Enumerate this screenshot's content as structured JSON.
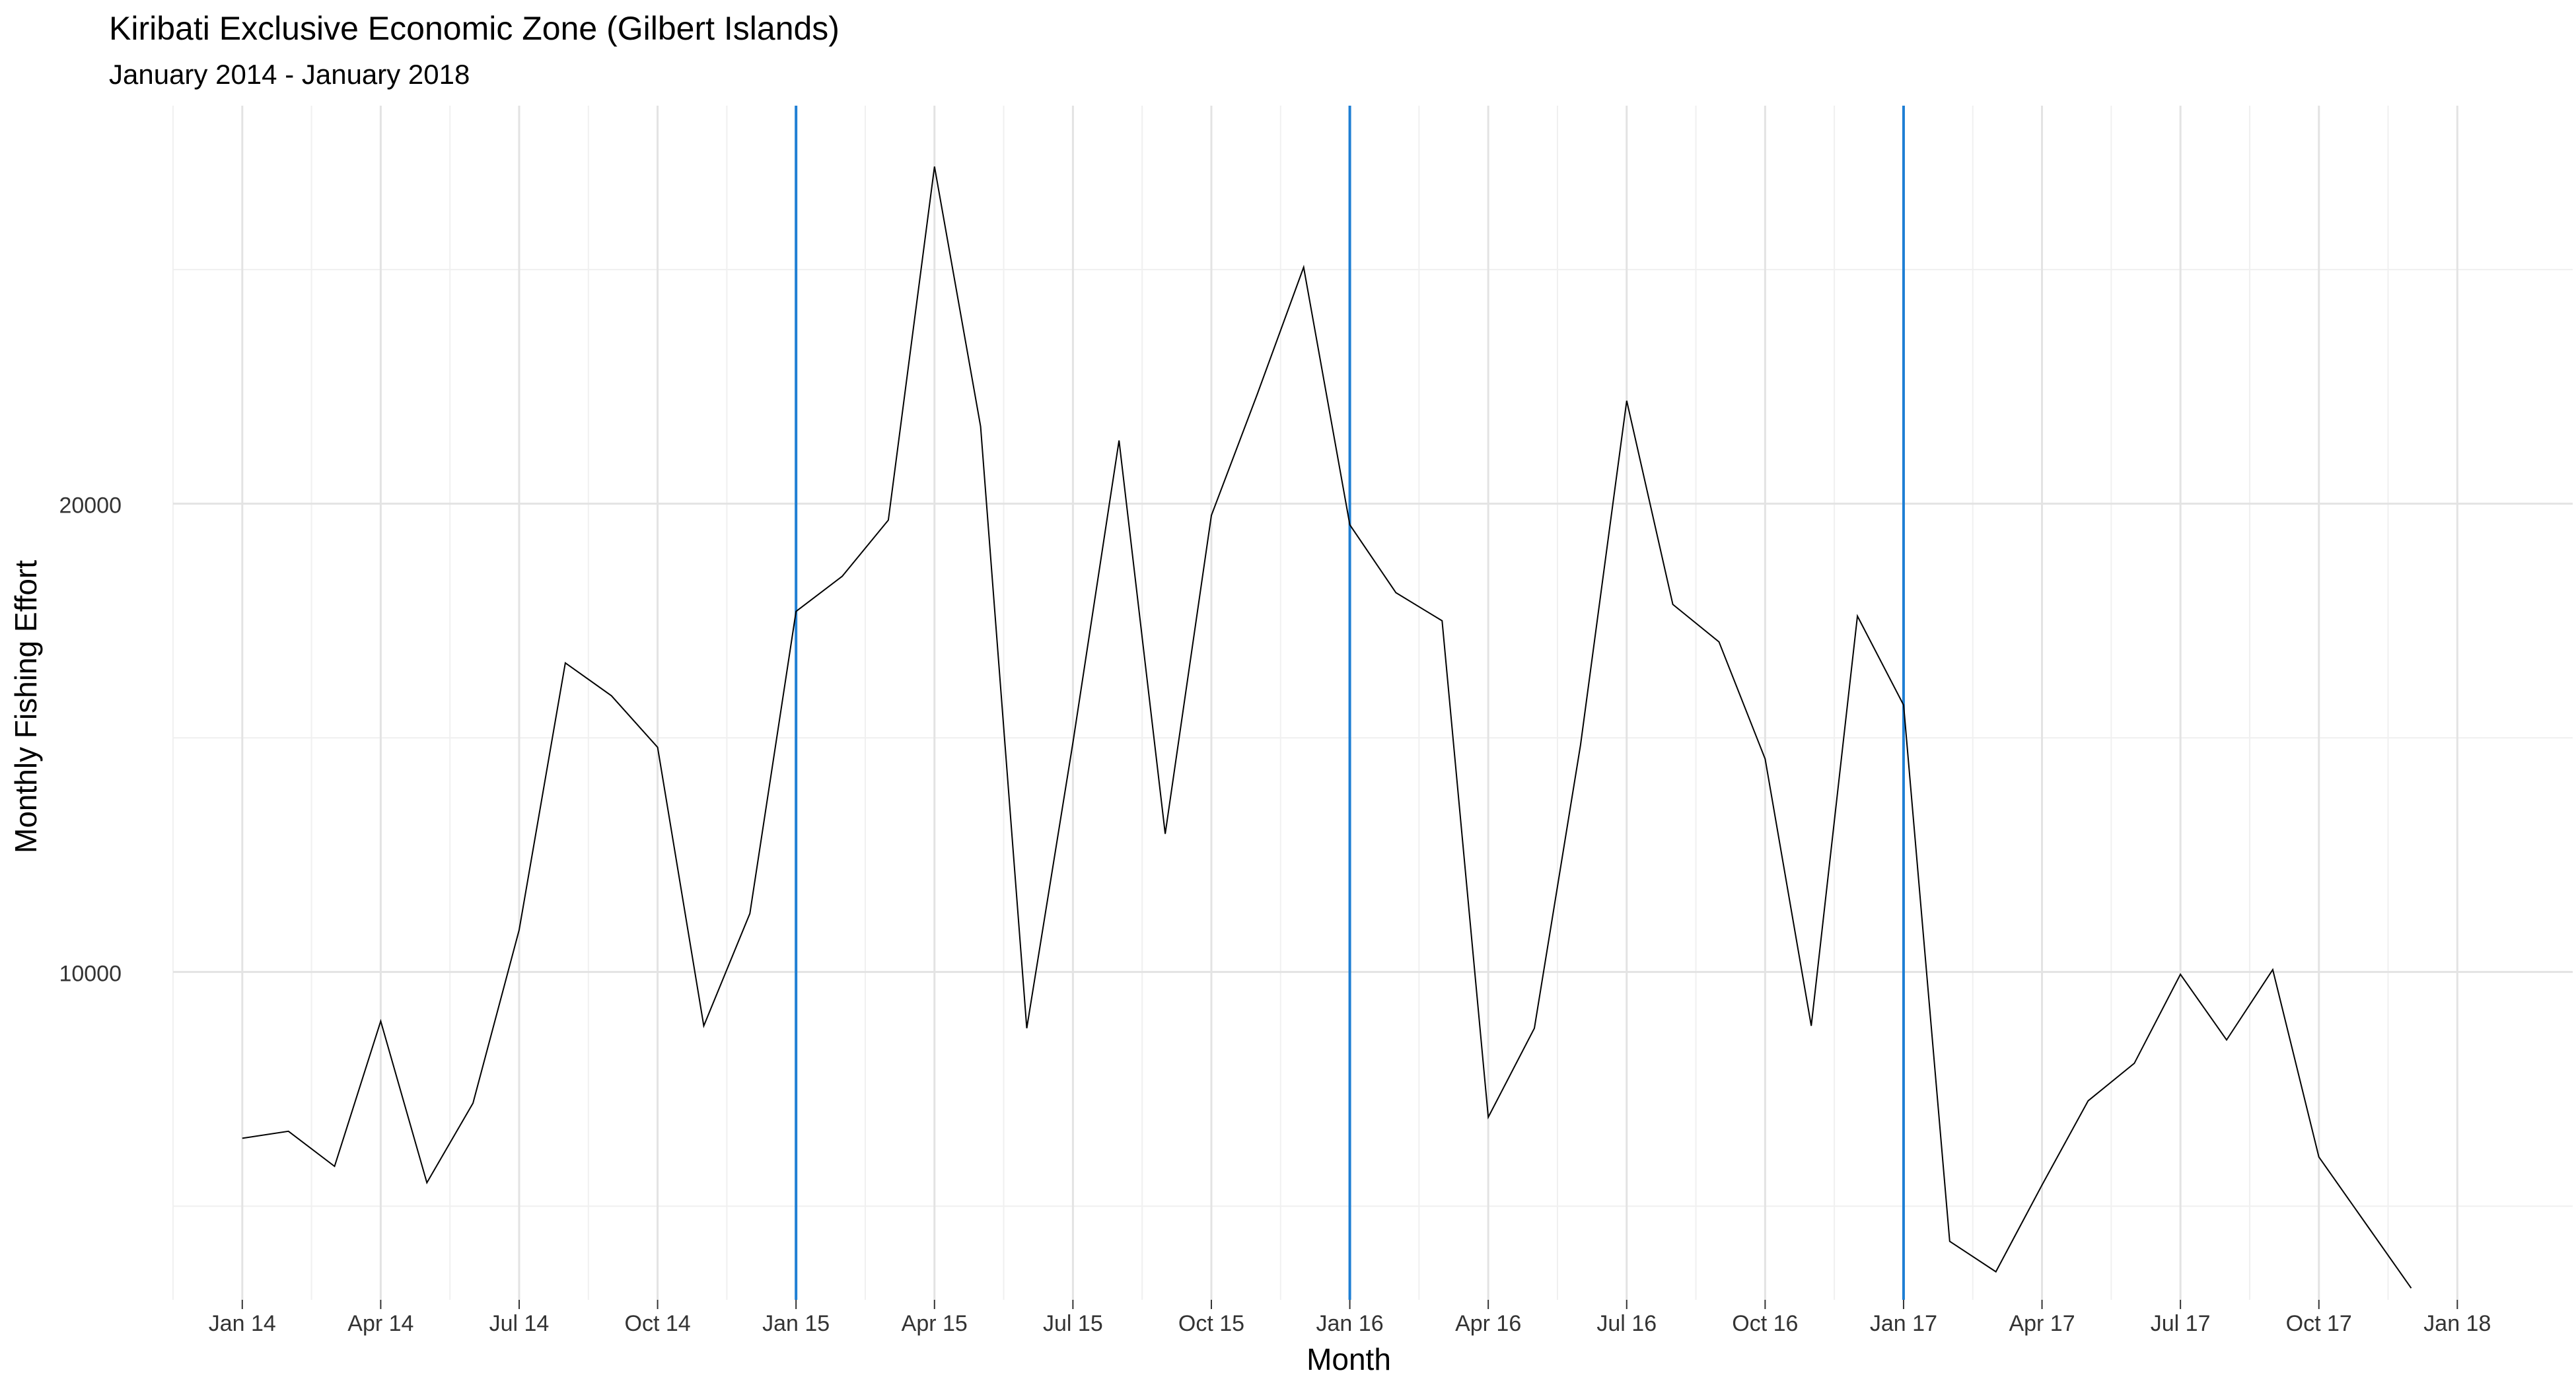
{
  "chart_data": {
    "type": "line",
    "title": "Kiribati Exclusive Economic Zone (Gilbert Islands)",
    "subtitle": "January 2014 - January 2018",
    "xlabel": "Month",
    "ylabel": "Monthly Fishing Effort",
    "ylim": [
      3000,
      28500
    ],
    "y_ticks": [
      10000,
      20000
    ],
    "y_tick_labels": [
      "10000",
      "20000"
    ],
    "x_ticks": [
      "Jan 14",
      "Apr 14",
      "Jul 14",
      "Oct 14",
      "Jan 15",
      "Apr 15",
      "Jul 15",
      "Oct 15",
      "Jan 16",
      "Apr 16",
      "Jul 16",
      "Oct 16",
      "Jan 17",
      "Apr 17",
      "Jul 17",
      "Oct 17",
      "Jan 18"
    ],
    "x_start_month_index": 0,
    "x_range_months": [
      -1.5,
      50.5
    ],
    "grid": true,
    "reference_lines": [
      "Jan 15",
      "Jan 16",
      "Jan 17"
    ],
    "reference_line_month_indices": [
      12,
      24,
      36
    ],
    "series": [
      {
        "name": "Monthly Fishing Effort",
        "color": "#000000",
        "values": [
          6450,
          6600,
          5850,
          8950,
          5500,
          7200,
          10900,
          16600,
          15900,
          14800,
          8850,
          11250,
          17700,
          18450,
          19650,
          27200,
          21650,
          8800,
          14900,
          21350,
          12950,
          19750,
          22350,
          25050,
          19550,
          18100,
          17500,
          6900,
          8800,
          14850,
          22200,
          17850,
          17050,
          14550,
          8850,
          17600,
          15700,
          4250,
          3600,
          5450,
          7250,
          8050,
          9950,
          8550,
          10050,
          6050,
          4650,
          3250
        ]
      }
    ],
    "colors": {
      "reference_line": "#1f7fd4",
      "grid_major": "#e3e3e3",
      "grid_minor": "#f0f0f0",
      "line": "#000000"
    }
  }
}
